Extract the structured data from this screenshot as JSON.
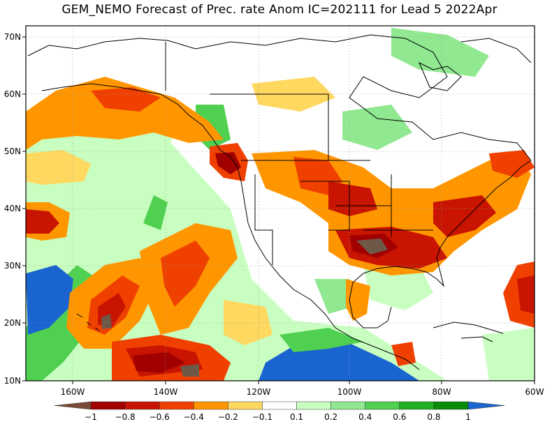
{
  "title": "GEM_NEMO Forecast of Prec. rate Anom IC=202111 for Lead 5 2022Apr",
  "lat_labels": [
    "70N",
    "60N",
    "50N",
    "40N",
    "30N",
    "20N",
    "10N"
  ],
  "lon_labels": [
    "160W",
    "140W",
    "120W",
    "100W",
    "80W",
    "60W"
  ],
  "colorbar": {
    "labels": [
      "−1",
      "−0.8",
      "−0.6",
      "−0.4",
      "−0.2",
      "−0.1",
      "0.1",
      "0.2",
      "0.4",
      "0.6",
      "0.8",
      "1"
    ],
    "colors": [
      "#7a4a38",
      "#a00000",
      "#c81400",
      "#f04000",
      "#ff9600",
      "#ffd860",
      "#ffffff",
      "#c8ffc0",
      "#90e890",
      "#50d050",
      "#20b020",
      "#0a8c0a",
      "#1a64d0"
    ]
  },
  "colors": {
    "land_outline": "#000000",
    "strong_wet": "#1a64d0",
    "strong_dry": "#6e5848"
  }
}
